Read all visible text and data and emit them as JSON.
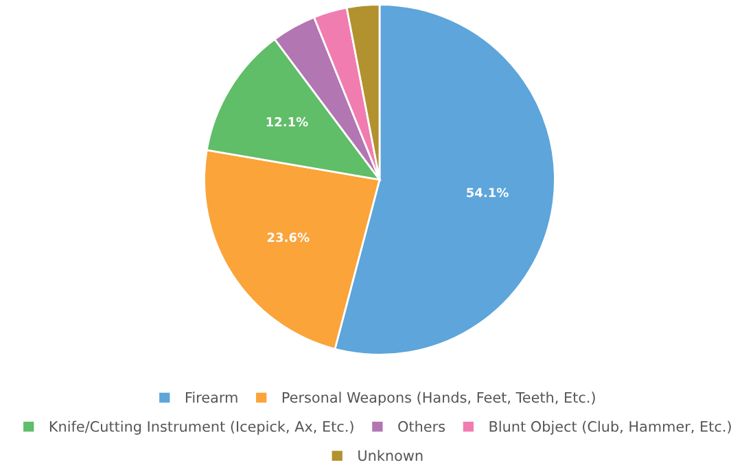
{
  "chart_data": {
    "type": "pie",
    "categories": [
      "Firearm",
      "Personal Weapons (Hands, Feet, Teeth, Etc.)",
      "Knife/Cutting Instrument (Icepick, Ax, Etc.)",
      "Others",
      "Blunt Object (Club, Hammer, Etc.)",
      "Unknown"
    ],
    "values": [
      54.1,
      23.6,
      12.1,
      4.1,
      3.1,
      3.0
    ],
    "value_labels": [
      "54.1%",
      "23.6%",
      "12.1%",
      null,
      null,
      null
    ],
    "colors": [
      "#5da5da",
      "#faa43a",
      "#60bd68",
      "#b276b2",
      "#f17cb0",
      "#b2912f"
    ],
    "legend": "bottom"
  }
}
